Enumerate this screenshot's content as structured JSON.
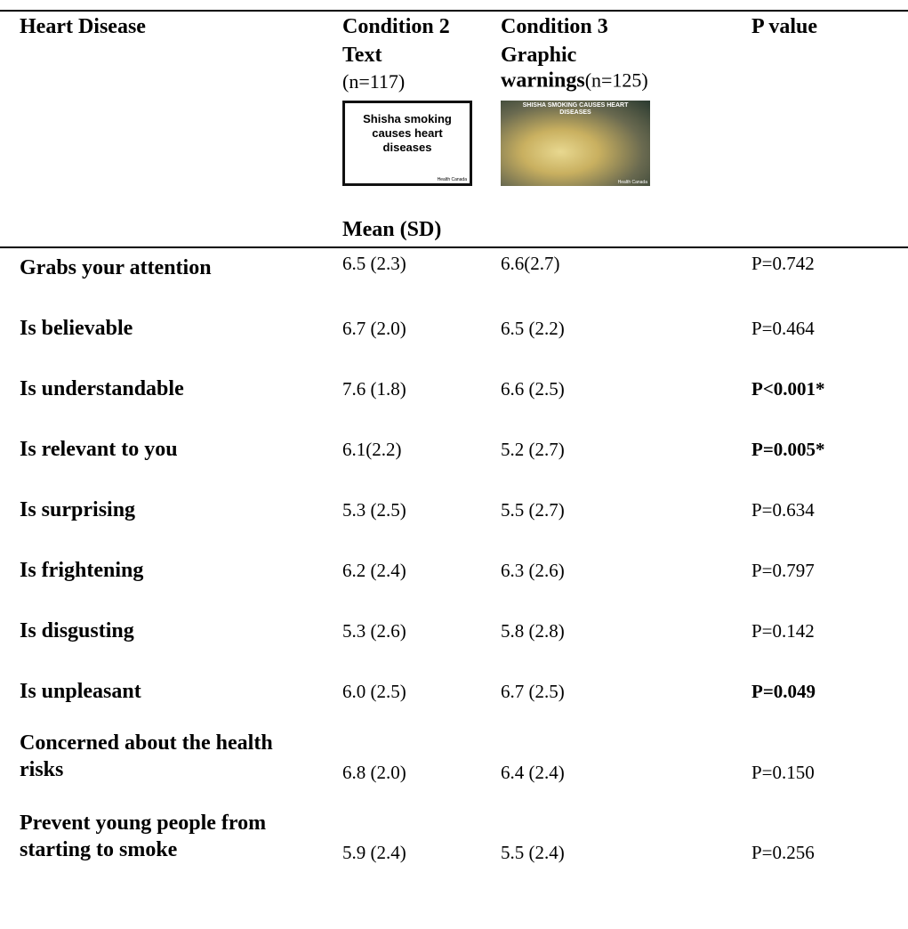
{
  "header": {
    "row_title": "Heart Disease",
    "col2": {
      "line1": "Condition 2",
      "line2": "Text",
      "n": "(n=117)",
      "image_text": "Shisha smoking causes heart diseases",
      "image_credit": "Health Canada"
    },
    "col3": {
      "line1": "Condition 3",
      "line2": "Graphic",
      "line3": "warnings",
      "n": "(n=125)",
      "image_text": "SHISHA SMOKING CAUSES HEART DISEASES",
      "image_credit": "Health Canada"
    },
    "col4": "P value",
    "subheader": "Mean (SD)"
  },
  "table": {
    "rows": [
      {
        "label": "Grabs your attention",
        "c2": "6.5 (2.3)",
        "c3": "6.6(2.7)",
        "p": "P=0.742",
        "p_bold": false
      },
      {
        "label": "Is believable",
        "c2": "6.7 (2.0)",
        "c3": "6.5 (2.2)",
        "p": "P=0.464",
        "p_bold": false
      },
      {
        "label": "Is understandable",
        "c2": "7.6 (1.8)",
        "c3": "6.6 (2.5)",
        "p": "P<0.001*",
        "p_bold": true
      },
      {
        "label": "Is relevant to you",
        "c2": "6.1(2.2)",
        "c3": "5.2 (2.7)",
        "p": "P=0.005*",
        "p_bold": true
      },
      {
        "label": "Is surprising",
        "c2": "5.3 (2.5)",
        "c3": "5.5 (2.7)",
        "p": "P=0.634",
        "p_bold": false
      },
      {
        "label": "Is frightening",
        "c2": "6.2 (2.4)",
        "c3": "6.3 (2.6)",
        "p": "P=0.797",
        "p_bold": false
      },
      {
        "label": "Is disgusting",
        "c2": "5.3 (2.6)",
        "c3": "5.8 (2.8)",
        "p": "P=0.142",
        "p_bold": false
      },
      {
        "label": "Is unpleasant",
        "c2": "6.0 (2.5)",
        "c3": "6.7 (2.5)",
        "p": "P=0.049",
        "p_bold": true
      },
      {
        "label": "Concerned about the health risks",
        "c2": "6.8 (2.0)",
        "c3": "6.4 (2.4)",
        "p": "P=0.150",
        "p_bold": false
      },
      {
        "label": "Prevent young people from starting to smoke",
        "c2": "5.9 (2.4)",
        "c3": "5.5 (2.4)",
        "p": "P=0.256",
        "p_bold": false
      }
    ]
  }
}
